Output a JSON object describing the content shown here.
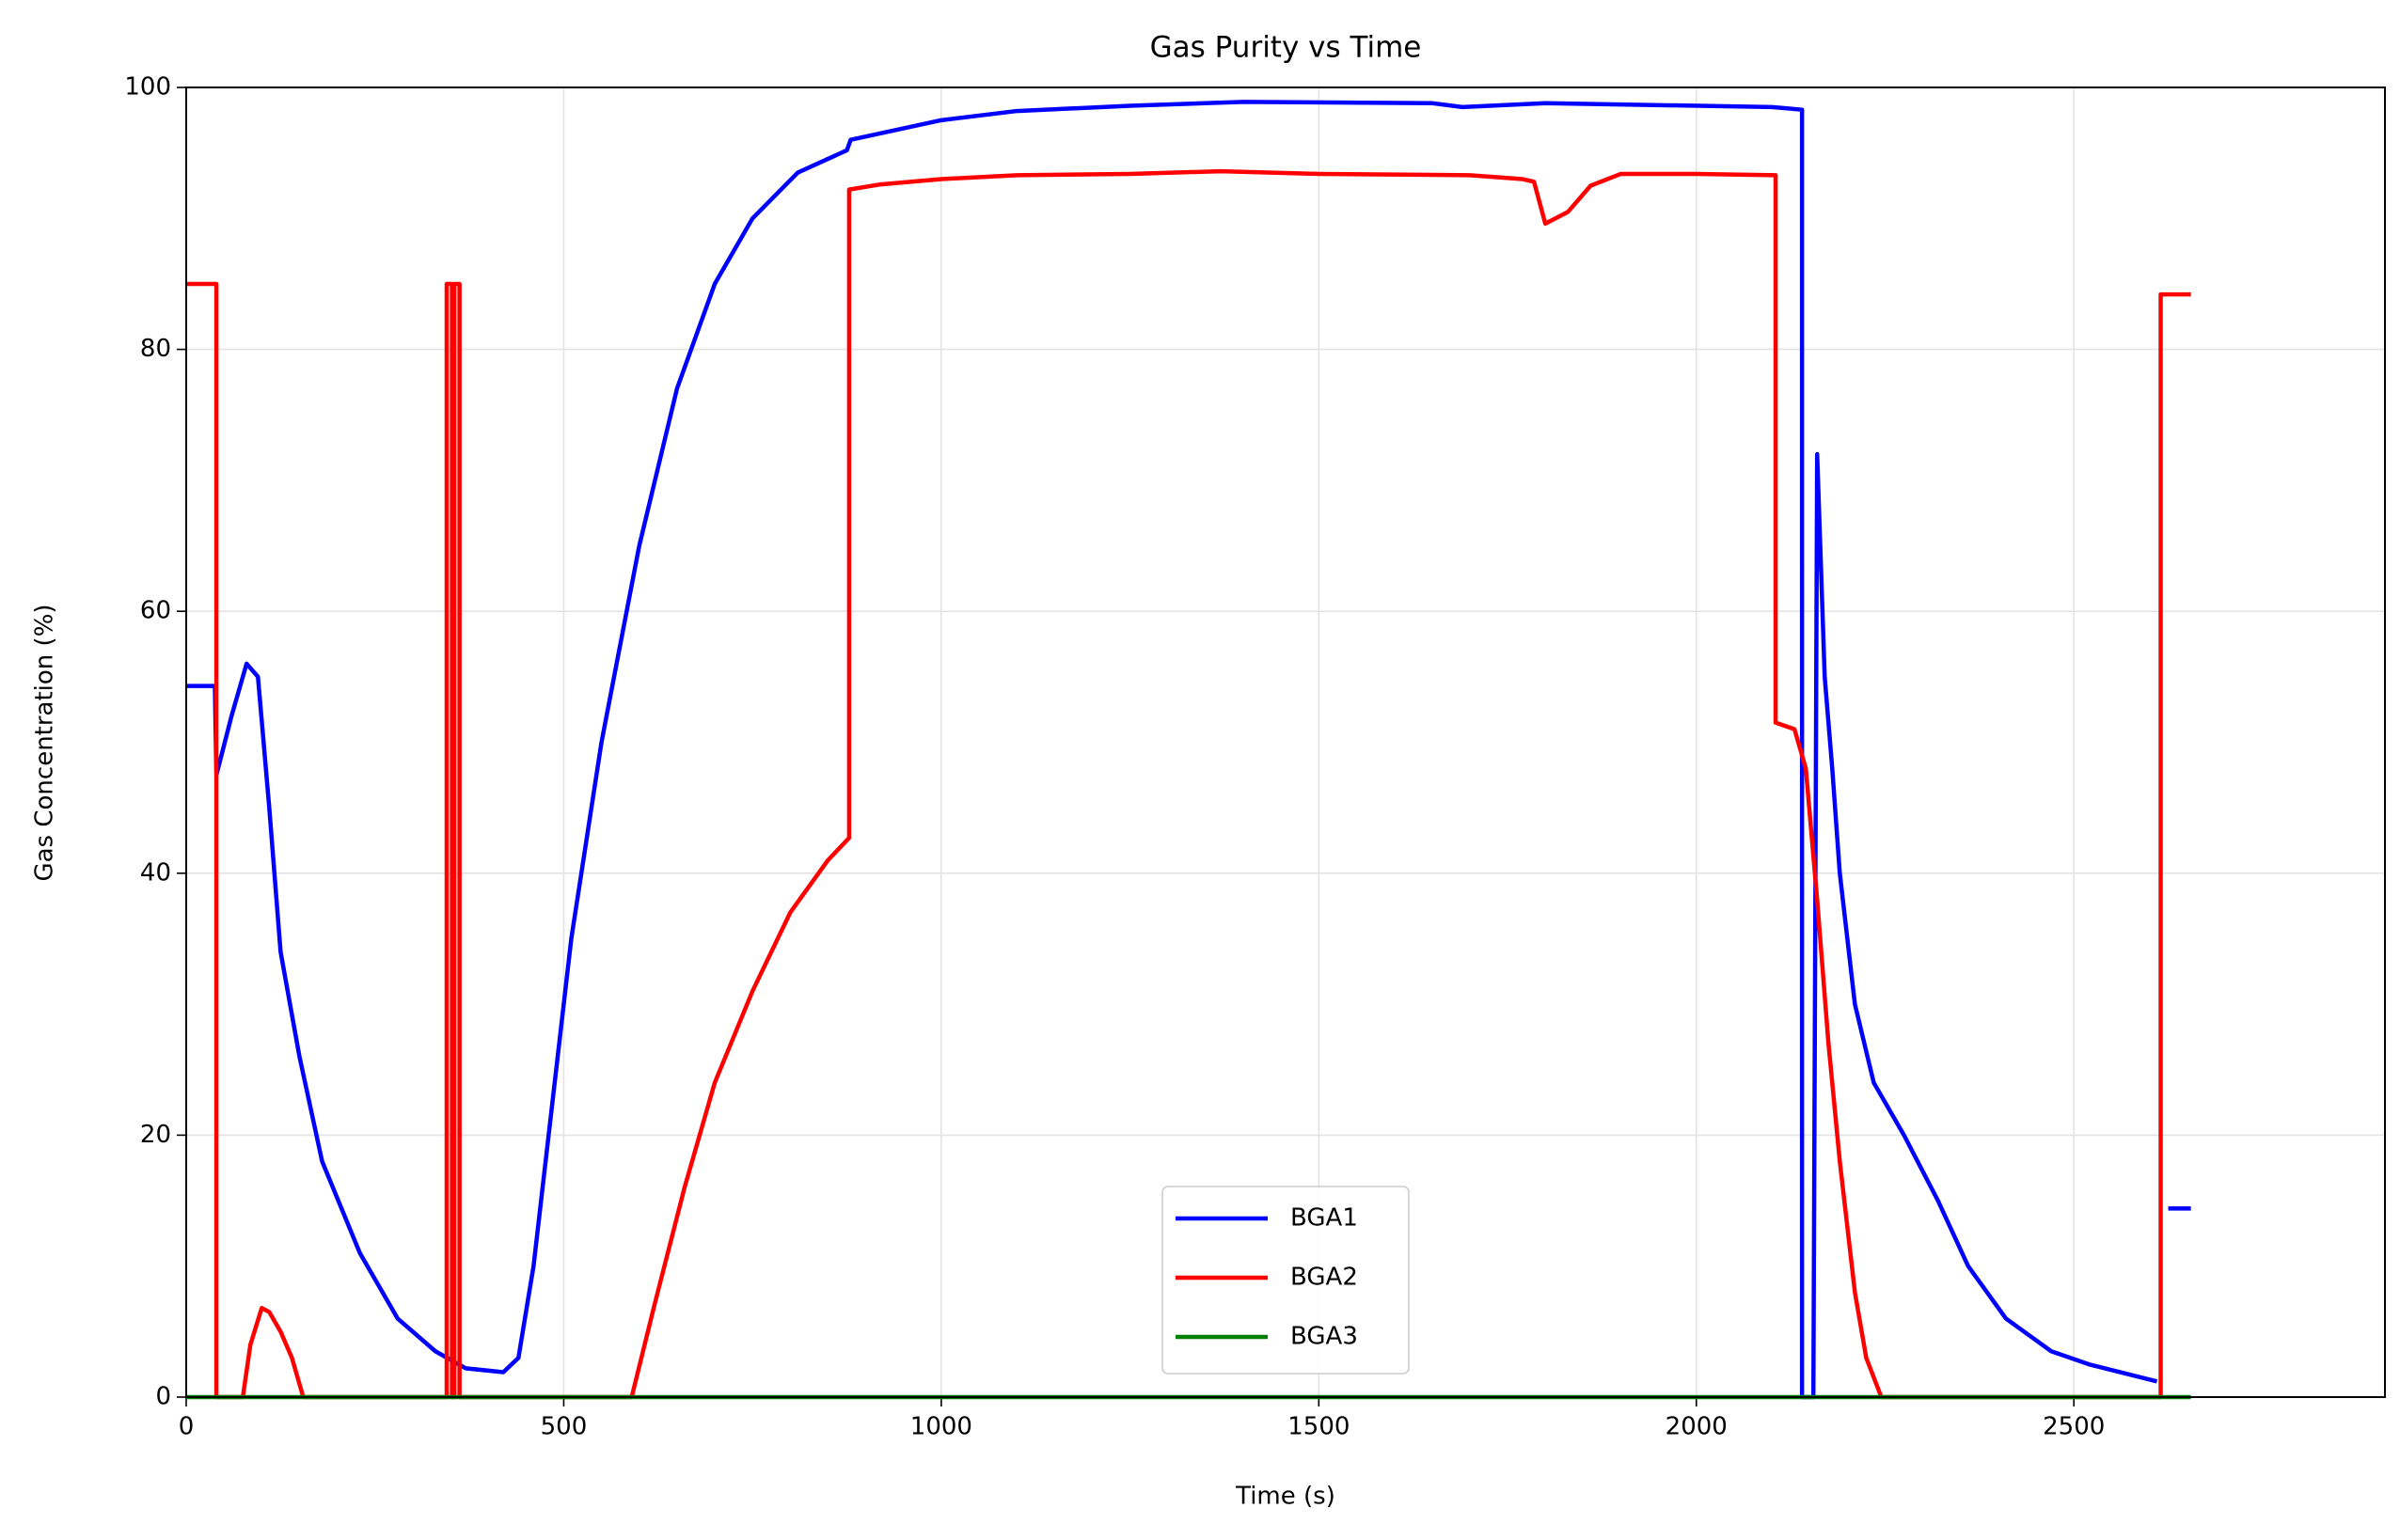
{
  "chart_data": {
    "type": "line",
    "title": "Gas Purity vs Time",
    "x_label": "Time (s)",
    "y_label": "Gas Concentration (%)",
    "xlim": [
      0,
      2912
    ],
    "ylim": [
      0,
      100
    ],
    "xticks": [
      0,
      500,
      1000,
      1500,
      2000,
      2500
    ],
    "yticks": [
      0,
      20,
      40,
      60,
      80,
      100
    ],
    "grid": true,
    "legend": "lower center",
    "series": [
      {
        "name": "BGA1",
        "color": "#0000ff",
        "x": [
          0,
          38,
          40,
          60,
          80,
          95,
          110,
          125,
          150,
          180,
          230,
          280,
          330,
          370,
          420,
          440,
          460,
          480,
          510,
          550,
          600,
          650,
          700,
          750,
          810,
          875,
          880,
          1000,
          1100,
          1250,
          1400,
          1650,
          1690,
          1800,
          2100,
          2140,
          2140,
          2155,
          2160,
          2170,
          2180,
          2190,
          2210,
          2235,
          2275,
          2320,
          2360,
          2410,
          2470,
          2520,
          2610,
          2618,
          2625,
          2655
        ],
        "values": [
          54.3,
          54.3,
          47.5,
          52,
          56,
          55,
          45,
          34,
          26,
          18,
          11,
          6,
          3.5,
          2.2,
          1.9,
          3,
          10,
          20,
          35,
          50,
          65,
          77,
          85,
          90,
          93.5,
          95.2,
          96,
          97.5,
          98.2,
          98.6,
          98.9,
          98.8,
          98.5,
          98.8,
          98.5,
          98.3,
          0,
          0,
          72,
          55,
          48,
          40,
          30,
          24,
          20,
          15,
          10,
          6,
          3.5,
          2.5,
          1.2,
          null,
          14.4,
          14.4
        ]
      },
      {
        "name": "BGA2",
        "color": "#ff0000",
        "x": [
          0,
          40,
          40,
          75,
          85,
          100,
          110,
          125,
          140,
          155,
          345,
          345,
          352,
          352,
          355,
          355,
          362,
          362,
          590,
          620,
          660,
          700,
          750,
          800,
          850,
          878,
          878,
          920,
          1000,
          1100,
          1250,
          1370,
          1500,
          1700,
          1770,
          1785,
          1800,
          1830,
          1860,
          1900,
          2000,
          2105,
          2105,
          2130,
          2145,
          2160,
          2175,
          2190,
          2210,
          2225,
          2245,
          2615,
          2615,
          2655
        ],
        "values": [
          85,
          85,
          0,
          0,
          4,
          6.8,
          6.5,
          5,
          3,
          0,
          0,
          85,
          85,
          0,
          0,
          85,
          85,
          0,
          0,
          7,
          16,
          24,
          31,
          37,
          41,
          42.7,
          92.2,
          92.6,
          93,
          93.3,
          93.4,
          93.6,
          93.4,
          93.3,
          93,
          92.8,
          89.6,
          90.5,
          92.5,
          93.4,
          93.4,
          93.3,
          51.5,
          51,
          48,
          38,
          27,
          18,
          8,
          3,
          0,
          0,
          84.2,
          84.2
        ]
      },
      {
        "name": "BGA3",
        "color": "#008000",
        "x": [
          0,
          2655
        ],
        "values": [
          0,
          0
        ]
      }
    ]
  }
}
